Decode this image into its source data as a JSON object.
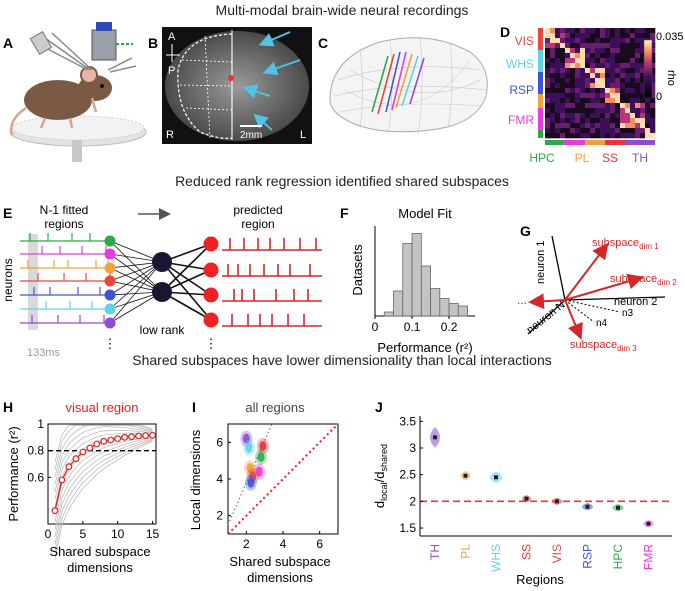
{
  "figure": {
    "section_titles": {
      "top": "Multi-modal brain-wide neural recordings",
      "middle": "Reduced rank regression identified shared subspaces",
      "bottom": "Shared subspaces have lower dimensionality than local interactions"
    },
    "panel_letters": [
      "A",
      "B",
      "C",
      "D",
      "E",
      "F",
      "G",
      "H",
      "I",
      "J"
    ],
    "colors": {
      "accent_red": "#d62728",
      "VIS": "#e8473c",
      "WHS": "#5fd3e6",
      "RSP": "#3d55d6",
      "FMR": "#e43ddb",
      "HPC": "#2fa84a",
      "PL": "#f0a23b",
      "SS": "#e8343a",
      "TH": "#8e4bd6"
    }
  },
  "panelB": {
    "orientation": {
      "A": "A",
      "P": "P"
    },
    "corners": {
      "R": "R",
      "L": "L"
    },
    "scalebar": "2mm"
  },
  "panelD": {
    "cbar_max": "0.035",
    "cbar_min": "0",
    "cbar_label": "rho",
    "row_labels": [
      "VIS",
      "WHS",
      "RSP",
      "FMR"
    ],
    "col_labels": [
      "HPC",
      "PL",
      "SS",
      "TH"
    ]
  },
  "panelE": {
    "left_title_line1": "N-1 fitted",
    "left_title_line2": "regions",
    "right_title_line1": "predicted",
    "right_title_line2": "region",
    "ylabel": "neurons",
    "bottleneck": "low rank",
    "bin": "133ms",
    "dots": "⋮",
    "neuron_colors": [
      "#2fa84a",
      "#e43ddb",
      "#f0a23b",
      "#e8473c",
      "#3d55d6",
      "#5fd3e6",
      "#8e4bd6"
    ]
  },
  "panelG": {
    "axes": [
      "neuron 1",
      "neuron 2",
      "neuron N",
      "n3",
      "n4"
    ],
    "subspaces": [
      {
        "base": "subspace",
        "sub": "dim 1"
      },
      {
        "base": "subspace",
        "sub": "dim 2"
      },
      {
        "base": "subspace",
        "sub": "dim 3"
      }
    ],
    "dots": "..."
  },
  "panelH": {
    "title": "visual region"
  },
  "panelI": {
    "title": "all regions"
  },
  "panelJ": {
    "xlabel": "Regions"
  },
  "chart_data": [
    {
      "id": "F",
      "type": "bar",
      "title": "Model Fit",
      "xlabel": "Performance (r²)",
      "ylabel": "Datasets",
      "bin_edges": [
        0.025,
        0.05,
        0.075,
        0.1,
        0.125,
        0.15,
        0.175,
        0.2,
        0.225,
        0.25
      ],
      "values": [
        8,
        50,
        145,
        165,
        100,
        55,
        35,
        25,
        20
      ],
      "xticks": [
        "0",
        "0.1",
        "0.2"
      ],
      "xlim": [
        0,
        0.27
      ],
      "ylim": [
        0,
        180
      ]
    },
    {
      "id": "H",
      "type": "line",
      "title": "visual region",
      "xlabel": "Shared subspace dimensions",
      "ylabel": "Performance (r²)",
      "x": [
        1,
        2,
        3,
        4,
        5,
        6,
        7,
        8,
        9,
        10,
        11,
        12,
        13,
        14,
        15
      ],
      "y": [
        0.35,
        0.58,
        0.68,
        0.74,
        0.79,
        0.82,
        0.85,
        0.87,
        0.88,
        0.89,
        0.9,
        0.905,
        0.91,
        0.913,
        0.915
      ],
      "reference_line": 0.8,
      "xticks": [
        "0",
        "5",
        "10",
        "15"
      ],
      "yticks": [
        "0.6",
        "0.8",
        "1"
      ],
      "xlim": [
        0,
        15.5
      ],
      "ylim": [
        0.25,
        1.0
      ]
    },
    {
      "id": "I",
      "type": "scatter",
      "title": "all regions",
      "xlabel": "Shared subspace dimensions",
      "ylabel": "Local dimensions",
      "clusters": [
        {
          "region": "TH",
          "x": 2.0,
          "y": 6.2
        },
        {
          "region": "WHS",
          "x": 2.15,
          "y": 5.7
        },
        {
          "region": "SS",
          "x": 2.9,
          "y": 5.8
        },
        {
          "region": "HPC",
          "x": 2.8,
          "y": 5.2
        },
        {
          "region": "PL",
          "x": 2.2,
          "y": 4.6
        },
        {
          "region": "FMR",
          "x": 2.7,
          "y": 4.4
        },
        {
          "region": "VIS",
          "x": 2.35,
          "y": 4.15
        },
        {
          "region": "RSP",
          "x": 2.25,
          "y": 3.8
        }
      ],
      "xticks": [
        "2",
        "4",
        "6"
      ],
      "yticks": [
        "2",
        "4",
        "6"
      ],
      "xlim": [
        1,
        7
      ],
      "ylim": [
        1,
        7
      ]
    },
    {
      "id": "J",
      "type": "scatter",
      "xlabel": "Regions",
      "ylabel": "d_local/d_shared",
      "categories": [
        "TH",
        "PL",
        "WHS",
        "SS",
        "VIS",
        "RSP",
        "HPC",
        "FMR"
      ],
      "values": [
        3.2,
        2.48,
        2.45,
        2.05,
        2.0,
        1.9,
        1.88,
        1.58
      ],
      "reference_line": 2.0,
      "yticks": [
        "1.5",
        "2",
        "2.5",
        "3",
        "3.5"
      ],
      "ylim": [
        1.35,
        3.6
      ]
    }
  ]
}
